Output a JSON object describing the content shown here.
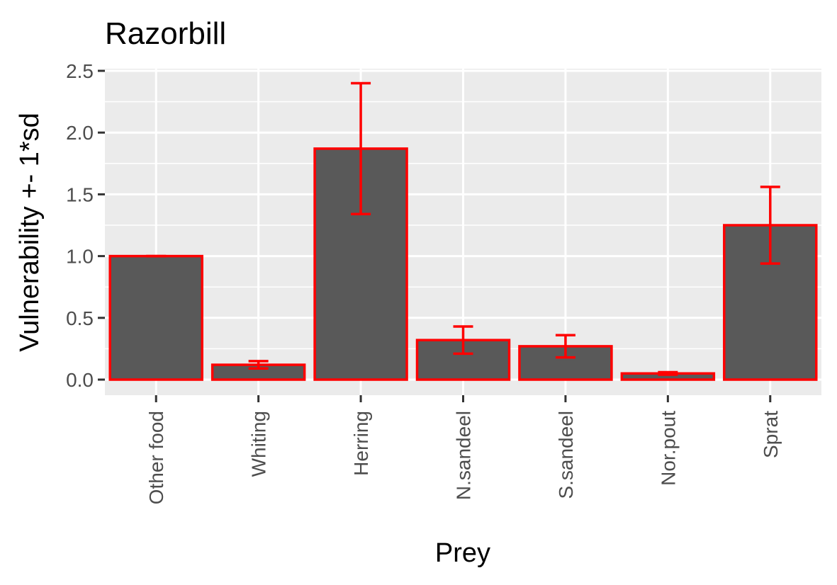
{
  "chart_data": {
    "type": "bar",
    "title": "Razorbill",
    "xlabel": "Prey",
    "ylabel": "Vulnerability +- 1*sd",
    "categories": [
      "Other food",
      "Whiting",
      "Herring",
      "N.sandeel",
      "S.sandeel",
      "Nor.pout",
      "Sprat"
    ],
    "values": [
      1.0,
      0.12,
      1.87,
      0.32,
      0.27,
      0.05,
      1.25
    ],
    "error_low": [
      1.0,
      0.09,
      1.34,
      0.21,
      0.18,
      0.04,
      0.94
    ],
    "error_high": [
      1.0,
      0.15,
      2.4,
      0.43,
      0.36,
      0.06,
      1.56
    ],
    "y_ticks": [
      "0.0",
      "0.5",
      "1.0",
      "1.5",
      "2.0",
      "2.5"
    ],
    "ylim": [
      -0.1,
      2.5
    ],
    "grid": true,
    "legend": "none",
    "colors": {
      "panel_background": "#ebebeb",
      "grid": "#ffffff",
      "bar_fill": "#595959",
      "bar_outline": "#ff0000",
      "error_bar": "#ff0000",
      "tick": "#333333",
      "tick_label": "#4d4d4d"
    }
  }
}
